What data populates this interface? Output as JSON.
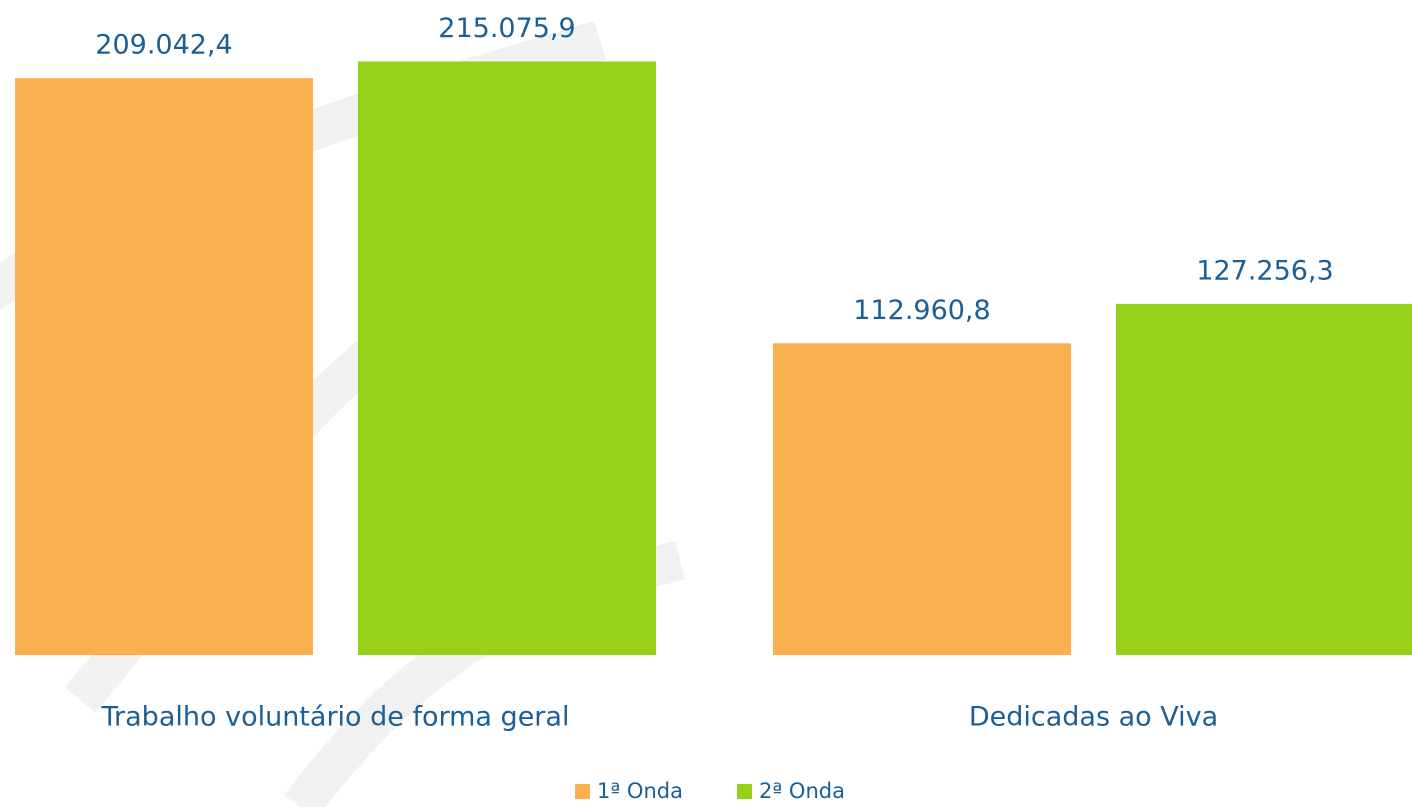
{
  "chart_data": {
    "type": "bar",
    "categories": [
      "Trabalho voluntário de forma geral",
      "Dedicadas ao Viva"
    ],
    "series": [
      {
        "name": "1ª Onda",
        "color": "#fbb050",
        "values": [
          209042.4,
          112960.8
        ],
        "value_labels": [
          "209.042,4",
          "112.960,8"
        ]
      },
      {
        "name": "2ª Onda",
        "color": "#96d018",
        "values": [
          215075.9,
          127256.3
        ],
        "value_labels": [
          "215.075,9",
          "127.256,3"
        ]
      }
    ]
  }
}
